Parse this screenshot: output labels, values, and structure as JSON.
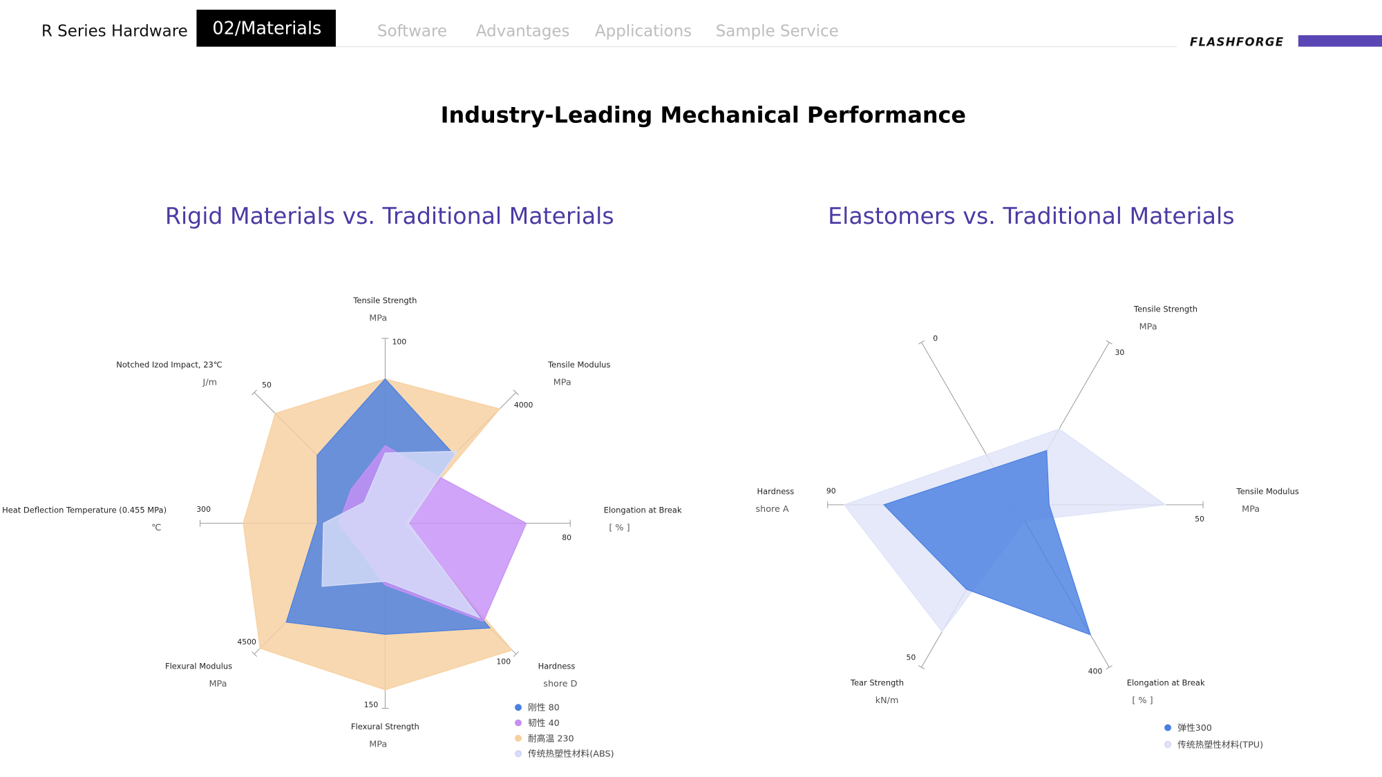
{
  "nav": {
    "items": [
      "R Series Hardware",
      "02/Materials",
      "Software",
      "Advantages",
      "Applications",
      "Sample Service"
    ],
    "active": 1,
    "brand": "FLASHFORGE"
  },
  "title": "Industry-Leading Mechanical Performance",
  "chart_data": [
    {
      "type": "radar",
      "title": "Rigid Materials vs. Traditional Materials",
      "axes": [
        {
          "name": "Tensile Strength",
          "unit": "MPa",
          "max": 100
        },
        {
          "name": "Tensile Modulus",
          "unit": "MPa",
          "max": 4000
        },
        {
          "name": "Elongation at Break",
          "unit": "[ % ]",
          "max": 80
        },
        {
          "name": "Hardness",
          "unit": "shore D",
          "max": 100
        },
        {
          "name": "Flexural Strength",
          "unit": "MPa",
          "max": 150
        },
        {
          "name": "Flexural Modulus",
          "unit": "MPa",
          "max": 4500
        },
        {
          "name": "Heat Deflection Temperature (0.455 MPa)",
          "unit": "℃",
          "max": 300
        },
        {
          "name": "Notched Izod Impact, 23℃",
          "unit": "J/m",
          "max": 50
        }
      ],
      "series": [
        {
          "name": "刚性 80",
          "color": "#4a80e2",
          "values": [
            78,
            2100,
            8,
            80,
            90,
            3400,
            110,
            26
          ]
        },
        {
          "name": "韧性 40",
          "color": "#c690f6",
          "values": [
            42,
            1500,
            61,
            75,
            50,
            900,
            75,
            13
          ]
        },
        {
          "name": "耐高温 230",
          "color": "#f7cf9f",
          "values": [
            78,
            3500,
            8,
            97,
            135,
            4300,
            230,
            42
          ]
        },
        {
          "name": "传统热塑性材料(ABS)",
          "color": "#d7ddf8",
          "values": [
            38,
            2200,
            10,
            72,
            47,
            2170,
            100,
            8
          ]
        }
      ]
    },
    {
      "type": "radar",
      "title": "Elastomers vs. Traditional Materials",
      "axes": [
        {
          "name": "Tensile Strength",
          "unit": "MPa",
          "max": 30
        },
        {
          "name": "Tensile Modulus",
          "unit": "MPa",
          "max": 50
        },
        {
          "name": "Elongation at Break",
          "unit": "[ % ]",
          "max": 400
        },
        {
          "name": "Tear Strength",
          "unit": "kN/m",
          "max": 50
        },
        {
          "name": "Hardness",
          "unit": "shore A",
          "max": 90
        },
        {
          "name": null,
          "unit": null,
          "max": 0
        }
      ],
      "series": [
        {
          "name": "弹性300",
          "color": "#4a80e2",
          "values": [
            10,
            9,
            320,
            26,
            63,
            null
          ]
        },
        {
          "name": "传统热塑性材料(TPU)",
          "color": "#dfe4f8",
          "values": [
            14,
            40,
            40,
            39,
            82,
            null
          ]
        }
      ]
    }
  ]
}
